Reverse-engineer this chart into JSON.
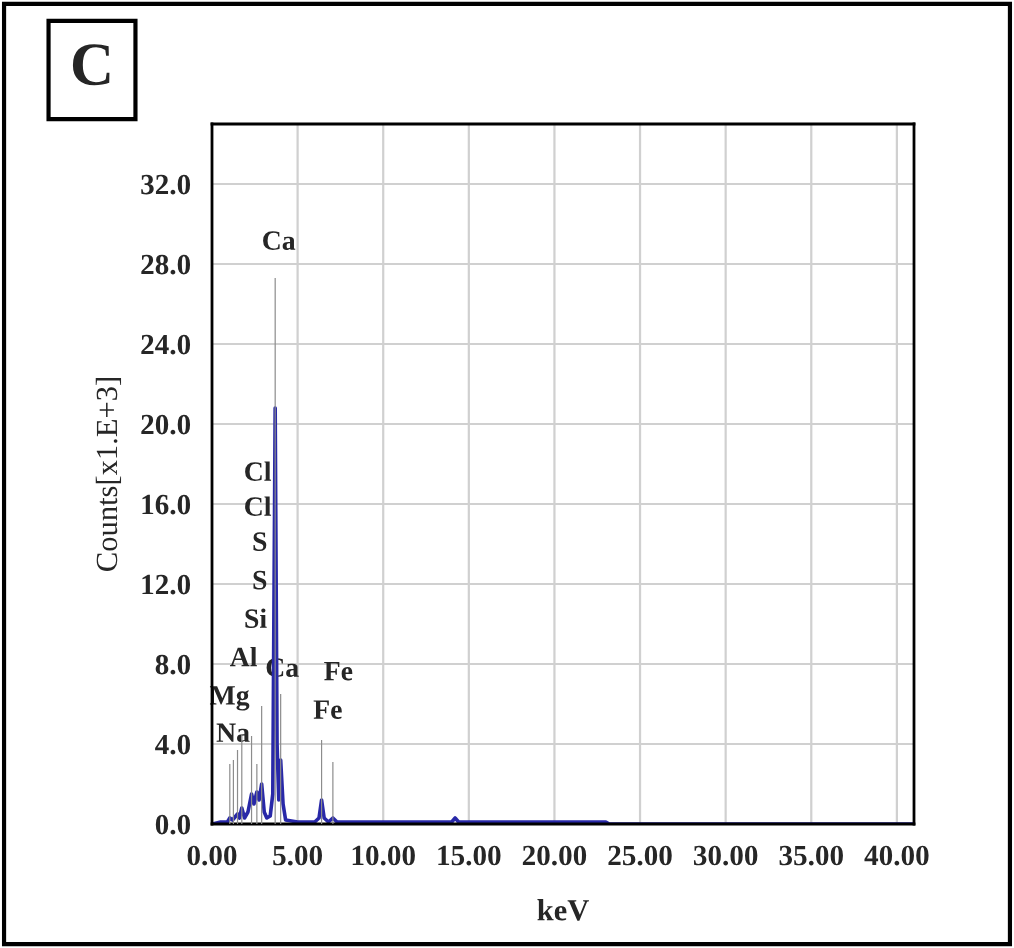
{
  "chart_data": {
    "type": "line",
    "title": "C",
    "xlabel": "keV",
    "ylabel": "Counts[x1.E+3]",
    "xlim": [
      0,
      41
    ],
    "ylim": [
      0,
      35
    ],
    "xticks": [
      {
        "value": 0,
        "label": "0.00"
      },
      {
        "value": 5,
        "label": "5.00"
      },
      {
        "value": 10,
        "label": "10.00"
      },
      {
        "value": 15,
        "label": "15.00"
      },
      {
        "value": 20,
        "label": "20.00"
      },
      {
        "value": 25,
        "label": "25.00"
      },
      {
        "value": 30,
        "label": "30.00"
      },
      {
        "value": 35,
        "label": "35.00"
      },
      {
        "value": 40,
        "label": "40.00"
      }
    ],
    "yticks": [
      {
        "value": 0,
        "label": "0.0"
      },
      {
        "value": 4,
        "label": "4.0"
      },
      {
        "value": 8,
        "label": "8.0"
      },
      {
        "value": 12,
        "label": "12.0"
      },
      {
        "value": 16,
        "label": "16.0"
      },
      {
        "value": 20,
        "label": "20.0"
      },
      {
        "value": 24,
        "label": "24.0"
      },
      {
        "value": 28,
        "label": "28.0"
      },
      {
        "value": 32,
        "label": "32.0"
      }
    ],
    "grid": true,
    "legend": false,
    "series": [
      {
        "type": "bar",
        "color": "#8c8c8c",
        "x": [
          1.04,
          1.25,
          1.49,
          1.74,
          2.31,
          2.62,
          2.9,
          3.69,
          4.01,
          6.4,
          7.06
        ],
        "values": [
          3.0,
          3.2,
          3.7,
          4.5,
          4.4,
          3.0,
          5.9,
          27.3,
          6.5,
          4.2,
          3.1
        ]
      },
      {
        "color": "#2828a8",
        "x": [
          0,
          0.5,
          0.9,
          1.04,
          1.2,
          1.49,
          1.6,
          1.74,
          1.9,
          2.1,
          2.31,
          2.45,
          2.62,
          2.75,
          2.9,
          3.05,
          3.2,
          3.4,
          3.55,
          3.69,
          3.8,
          3.9,
          4.01,
          4.15,
          4.3,
          5.0,
          6.0,
          6.25,
          6.4,
          6.55,
          6.8,
          7.06,
          7.3,
          10.0,
          14.0,
          14.2,
          14.4,
          18.0,
          23.0,
          23.2,
          41.0
        ],
        "values": [
          0,
          0.1,
          0.1,
          0.3,
          0.2,
          0.5,
          0.3,
          0.8,
          0.3,
          0.6,
          1.5,
          1.0,
          1.6,
          1.2,
          2.0,
          0.6,
          0.3,
          0.4,
          1.5,
          20.8,
          4.0,
          1.2,
          3.2,
          1.0,
          0.2,
          0.1,
          0.1,
          0.3,
          1.2,
          0.3,
          0.1,
          0.3,
          0.1,
          0.1,
          0.1,
          0.3,
          0.1,
          0.1,
          0.1,
          0,
          0
        ]
      }
    ],
    "annotations": [
      "Ca",
      "Cl",
      "Cl",
      "S",
      "S",
      "Si",
      "Al",
      "Mg",
      "Na",
      "Ca",
      "Fe",
      "Fe"
    ]
  }
}
